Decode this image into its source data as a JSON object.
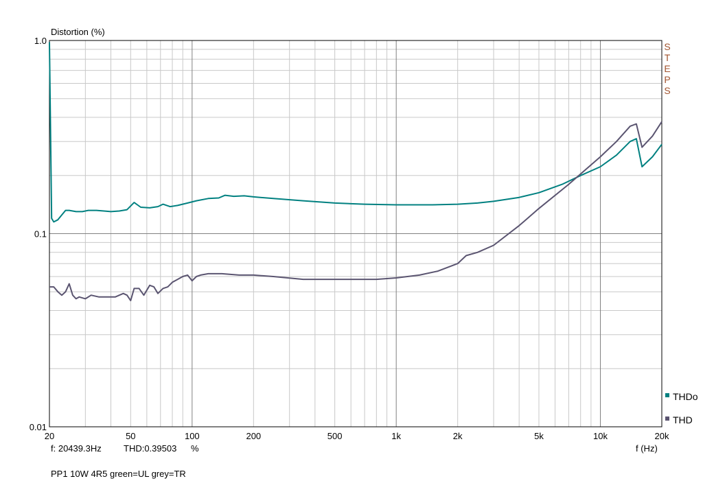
{
  "chart_data": {
    "type": "line",
    "title": "",
    "ylabel": "Distortion (%)",
    "xlabel": "f (Hz)",
    "x_scale": "log",
    "y_scale": "log",
    "xlim": [
      20,
      20000
    ],
    "ylim": [
      0.01,
      1.0
    ],
    "grid": true,
    "x_ticks": [
      {
        "value": 20,
        "label": "20"
      },
      {
        "value": 50,
        "label": "50"
      },
      {
        "value": 100,
        "label": "100"
      },
      {
        "value": 200,
        "label": "200"
      },
      {
        "value": 500,
        "label": "500"
      },
      {
        "value": 1000,
        "label": "1k"
      },
      {
        "value": 2000,
        "label": "2k"
      },
      {
        "value": 5000,
        "label": "5k"
      },
      {
        "value": 10000,
        "label": "10k"
      },
      {
        "value": 20000,
        "label": "20k"
      }
    ],
    "y_ticks": [
      {
        "value": 1.0,
        "label": "1.0"
      },
      {
        "value": 0.1,
        "label": "0.1"
      },
      {
        "value": 0.01,
        "label": "0.01"
      }
    ],
    "series": [
      {
        "name": "THDo",
        "color": "#008080",
        "x": [
          20,
          20.5,
          21,
          22,
          23,
          24,
          25,
          27,
          29,
          31,
          34,
          37,
          40,
          44,
          48,
          52,
          56,
          62,
          68,
          72,
          78,
          85,
          95,
          105,
          120,
          135,
          145,
          160,
          180,
          200,
          250,
          350,
          500,
          700,
          1000,
          1500,
          2000,
          2500,
          3000,
          4000,
          5000,
          6500,
          8000,
          10000,
          12000,
          14000,
          15000,
          16000,
          18000,
          20000
        ],
        "y": [
          0.98,
          0.12,
          0.115,
          0.118,
          0.125,
          0.132,
          0.132,
          0.13,
          0.13,
          0.132,
          0.132,
          0.131,
          0.13,
          0.131,
          0.133,
          0.145,
          0.137,
          0.136,
          0.138,
          0.142,
          0.138,
          0.14,
          0.144,
          0.148,
          0.152,
          0.153,
          0.158,
          0.156,
          0.157,
          0.155,
          0.152,
          0.148,
          0.144,
          0.142,
          0.141,
          0.141,
          0.142,
          0.144,
          0.147,
          0.154,
          0.163,
          0.18,
          0.2,
          0.222,
          0.255,
          0.3,
          0.31,
          0.222,
          0.25,
          0.29
        ]
      },
      {
        "name": "THD",
        "color": "#5a5470",
        "x": [
          20,
          21,
          22,
          23,
          24,
          25,
          26,
          27,
          28,
          30,
          32,
          35,
          38,
          42,
          46,
          48,
          50,
          52,
          55,
          58,
          62,
          65,
          68,
          72,
          76,
          80,
          85,
          90,
          95,
          100,
          105,
          110,
          120,
          140,
          170,
          200,
          250,
          350,
          500,
          700,
          800,
          1000,
          1300,
          1600,
          2000,
          2200,
          2500,
          3000,
          4000,
          5000,
          7000,
          10000,
          12000,
          14000,
          15000,
          16000,
          18000,
          20000
        ],
        "y": [
          0.053,
          0.053,
          0.05,
          0.048,
          0.05,
          0.055,
          0.048,
          0.046,
          0.047,
          0.046,
          0.048,
          0.047,
          0.047,
          0.047,
          0.049,
          0.048,
          0.045,
          0.052,
          0.052,
          0.048,
          0.054,
          0.053,
          0.049,
          0.052,
          0.053,
          0.056,
          0.058,
          0.06,
          0.061,
          0.057,
          0.06,
          0.061,
          0.062,
          0.062,
          0.061,
          0.061,
          0.06,
          0.058,
          0.058,
          0.058,
          0.058,
          0.059,
          0.061,
          0.064,
          0.07,
          0.077,
          0.08,
          0.087,
          0.11,
          0.135,
          0.18,
          0.25,
          0.3,
          0.36,
          0.37,
          0.28,
          0.32,
          0.38
        ]
      }
    ],
    "annotations": {
      "steps_letters": [
        "S",
        "T",
        "E",
        "P",
        "S"
      ],
      "cursor_freq": "f: 20439.3Hz",
      "cursor_thd": "THD:0.39503",
      "cursor_unit": "%",
      "caption": "PP1 10W 4R5 green=UL grey=TR"
    },
    "colors": {
      "frame": "#000000",
      "major_grid": "#808080",
      "minor_grid": "#c8c8c8",
      "steps_text": "#a0522d",
      "thdo": "#008080",
      "thd": "#5a5470"
    }
  }
}
